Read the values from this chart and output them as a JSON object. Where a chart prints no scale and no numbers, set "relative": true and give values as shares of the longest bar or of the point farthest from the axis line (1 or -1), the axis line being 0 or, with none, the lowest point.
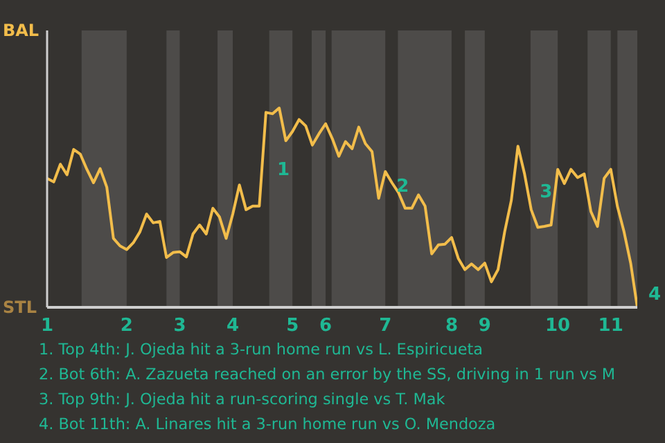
{
  "chart_data": {
    "type": "line",
    "categories": [
      "1",
      null,
      null,
      null,
      null,
      null,
      null,
      null,
      null,
      null,
      null,
      null,
      "2",
      null,
      null,
      null,
      null,
      null,
      null,
      null,
      "3",
      null,
      null,
      null,
      null,
      null,
      null,
      null,
      "4",
      null,
      null,
      null,
      null,
      null,
      null,
      null,
      null,
      "5",
      null,
      null,
      null,
      null,
      "6",
      null,
      null,
      null,
      null,
      null,
      null,
      null,
      null,
      "7",
      null,
      null,
      null,
      null,
      null,
      null,
      null,
      null,
      null,
      "8",
      null,
      null,
      null,
      null,
      "9",
      null,
      null,
      null,
      null,
      null,
      null,
      null,
      null,
      null,
      null,
      "10",
      null,
      null,
      null,
      null,
      null,
      null,
      null,
      "11",
      null,
      null,
      null,
      null
    ],
    "series": [
      {
        "color": "#f2bd4b",
        "values": [
          0.647,
          0.629,
          0.718,
          0.665,
          0.792,
          0.769,
          0.692,
          0.625,
          0.696,
          0.603,
          0.346,
          0.308,
          0.29,
          0.324,
          0.379,
          0.468,
          0.424,
          0.431,
          0.25,
          0.275,
          0.279,
          0.253,
          0.368,
          0.413,
          0.368,
          0.497,
          0.453,
          0.346,
          0.468,
          0.614,
          0.49,
          0.508,
          0.508,
          0.978,
          0.971,
          1,
          0.836,
          0.882,
          0.942,
          0.91,
          0.814,
          0.871,
          0.921,
          0.847,
          0.758,
          0.831,
          0.796,
          0.904,
          0.821,
          0.781,
          0.547,
          0.681,
          0.625,
          0.575,
          0.497,
          0.497,
          0.564,
          0.508,
          0.268,
          0.313,
          0.317,
          0.35,
          0.246,
          0.189,
          0.218,
          0.189,
          0.222,
          0.128,
          0.189,
          0.379,
          0.536,
          0.808,
          0.669,
          0.49,
          0.401,
          0.406,
          0.413,
          0.692,
          0.621,
          0.692,
          0.651,
          0.669,
          0.481,
          0.406,
          0.647,
          0.692,
          0.507,
          0.379,
          0.222,
          0
        ]
      }
    ],
    "relative": true,
    "annotations": [
      "BAL",
      "STL",
      "1",
      "2",
      "3",
      "4",
      "1. Top 4th: J. Ojeda hit a 3-run home run vs L. Espiricueta",
      "2. Bot 6th: A. Zazueta reached on an error by the SS, driving in 1 run vs M",
      "3. Top 9th: J. Ojeda hit a run-scoring single vs T. Mak",
      "4. Bot 11th: A. Linares hit a 3-run home run vs O. Mendoza"
    ]
  }
}
